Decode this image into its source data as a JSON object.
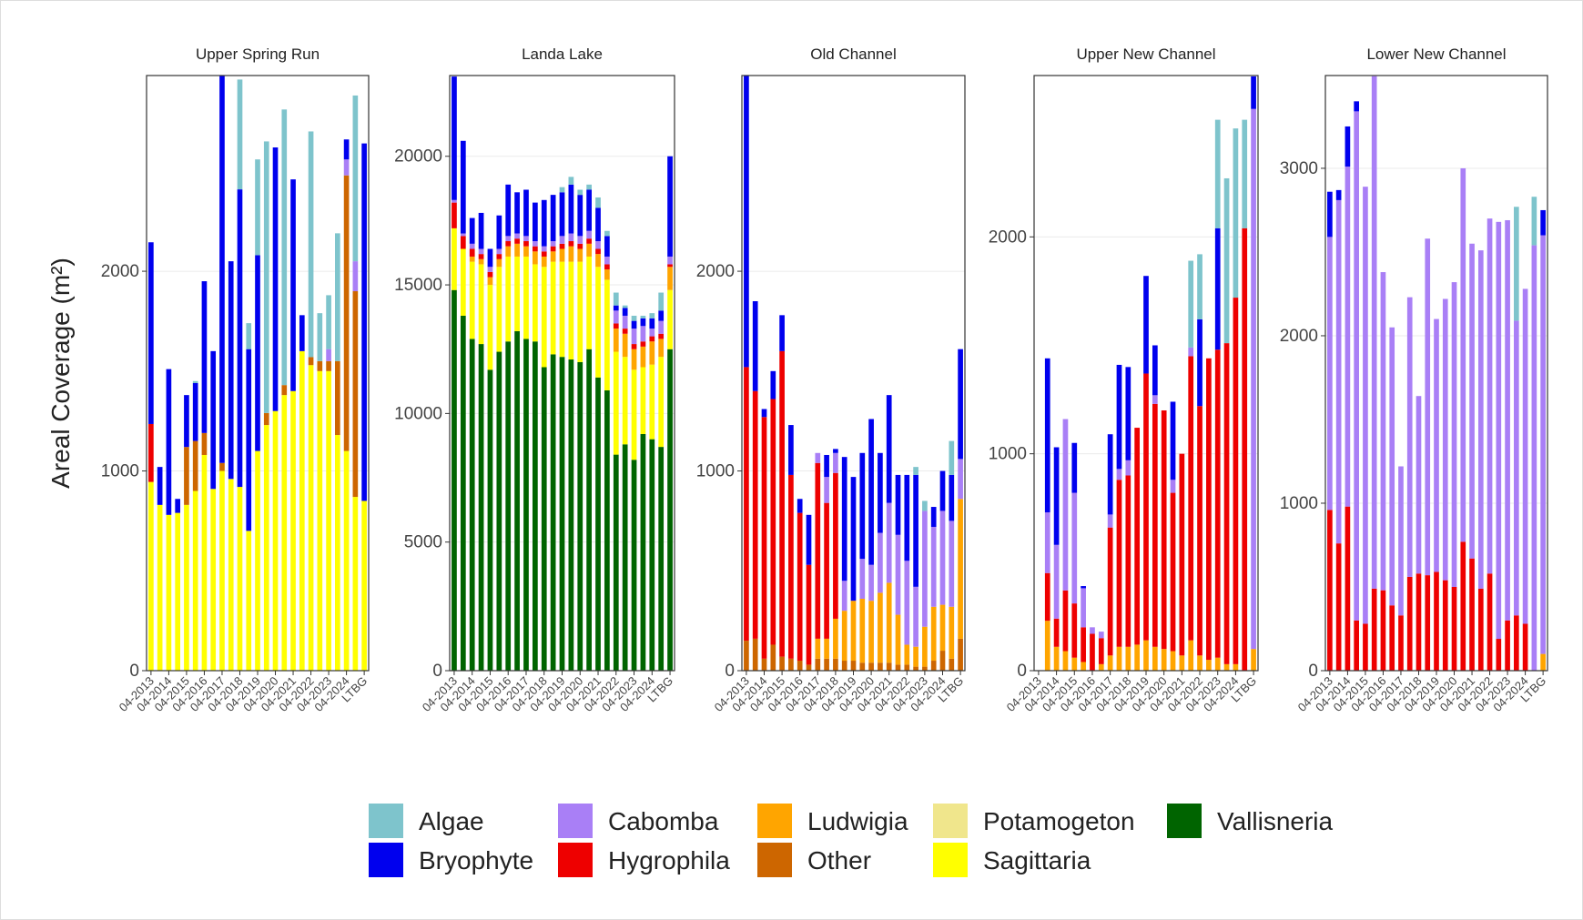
{
  "y_axis_label": "Areal Coverage (m²)",
  "legend": [
    {
      "name": "Algae",
      "color": "#7ec4cc"
    },
    {
      "name": "Bryophyte",
      "color": "#0000ee"
    },
    {
      "name": "Cabomba",
      "color": "#a97ff6"
    },
    {
      "name": "Hygrophila",
      "color": "#ee0000"
    },
    {
      "name": "Ludwigia",
      "color": "#ffa500"
    },
    {
      "name": "Other",
      "color": "#cd6600"
    },
    {
      "name": "Potamogeton",
      "color": "#f0e68c"
    },
    {
      "name": "Sagittaria",
      "color": "#ffff00"
    },
    {
      "name": "Vallisneria",
      "color": "#006400"
    }
  ],
  "chart_data": [
    {
      "type": "stacked_bar",
      "title": "Upper Spring Run",
      "categories": [
        "04-2013",
        null,
        "04-2014",
        null,
        "04-2015",
        null,
        "04-2016",
        null,
        "04-2017",
        null,
        "04-2018",
        null,
        "04-2019",
        null,
        "04-2020",
        null,
        "04-2021",
        null,
        "04-2022",
        null,
        "04-2023",
        null,
        "04-2024",
        null,
        "LTBG"
      ],
      "ylim": [
        0,
        2980
      ],
      "yticks": [
        0,
        1000,
        2000
      ],
      "grid": true,
      "series": [
        {
          "name": "Sagittaria",
          "values": [
            945,
            830,
            780,
            790,
            830,
            900,
            1080,
            910,
            1000,
            960,
            920,
            700,
            1100,
            1230,
            1300,
            1380,
            1400,
            1600,
            1530,
            1500,
            1500,
            1180,
            1100,
            870,
            850
          ]
        },
        {
          "name": "Other",
          "values": [
            0,
            0,
            0,
            0,
            290,
            250,
            110,
            0,
            40,
            0,
            0,
            0,
            0,
            60,
            0,
            50,
            0,
            0,
            40,
            50,
            50,
            370,
            1380,
            1030,
            0
          ]
        },
        {
          "name": "Hygrophila",
          "values": [
            290,
            0,
            0,
            0,
            0,
            0,
            0,
            0,
            0,
            0,
            0,
            0,
            0,
            0,
            0,
            0,
            0,
            0,
            0,
            0,
            0,
            0,
            0,
            0,
            0
          ]
        },
        {
          "name": "Cabomba",
          "values": [
            0,
            0,
            0,
            0,
            0,
            0,
            0,
            0,
            0,
            0,
            0,
            0,
            0,
            0,
            0,
            0,
            0,
            0,
            0,
            0,
            60,
            0,
            80,
            150,
            0
          ]
        },
        {
          "name": "Bryophyte",
          "values": [
            910,
            190,
            730,
            70,
            260,
            290,
            760,
            690,
            1940,
            1090,
            1490,
            910,
            980,
            0,
            1320,
            0,
            1060,
            180,
            0,
            0,
            0,
            0,
            100,
            0,
            1790
          ]
        },
        {
          "name": "Algae",
          "values": [
            0,
            0,
            0,
            0,
            0,
            10,
            0,
            0,
            0,
            0,
            550,
            130,
            480,
            1360,
            0,
            1380,
            0,
            0,
            1130,
            240,
            270,
            640,
            0,
            830,
            0
          ]
        }
      ]
    },
    {
      "type": "stacked_bar",
      "title": "Landa Lake",
      "categories": [
        "04-2013",
        null,
        "04-2014",
        null,
        "04-2015",
        null,
        "04-2016",
        null,
        "04-2017",
        null,
        "04-2018",
        null,
        "04-2019",
        null,
        "04-2020",
        null,
        "04-2021",
        null,
        "04-2022",
        null,
        "04-2023",
        null,
        "04-2024",
        null,
        "LTBG"
      ],
      "ylim": [
        0,
        23140
      ],
      "yticks": [
        0,
        5000,
        10000,
        15000,
        20000
      ],
      "grid": true,
      "series": [
        {
          "name": "Vallisneria",
          "values": [
            14800,
            13800,
            12900,
            12700,
            11700,
            12400,
            12800,
            13200,
            12900,
            12800,
            11800,
            12300,
            12200,
            12100,
            12000,
            12500,
            11400,
            10900,
            8400,
            8800,
            8200,
            9200,
            9000,
            8700,
            12500
          ]
        },
        {
          "name": "Sagittaria",
          "values": [
            2400,
            2600,
            3000,
            3100,
            3300,
            3300,
            3300,
            2900,
            3200,
            3000,
            3900,
            3600,
            3700,
            3800,
            3900,
            3600,
            4300,
            4300,
            4000,
            3400,
            3500,
            2600,
            2900,
            3500,
            2300
          ]
        },
        {
          "name": "Ludwigia",
          "values": [
            0,
            0,
            200,
            200,
            300,
            300,
            400,
            500,
            400,
            500,
            400,
            400,
            500,
            600,
            500,
            500,
            500,
            400,
            900,
            900,
            800,
            800,
            900,
            700,
            900
          ]
        },
        {
          "name": "Hygrophila",
          "values": [
            1000,
            500,
            300,
            200,
            200,
            200,
            200,
            200,
            200,
            200,
            200,
            200,
            200,
            200,
            200,
            200,
            200,
            200,
            200,
            200,
            200,
            200,
            200,
            200,
            100
          ]
        },
        {
          "name": "Cabomba",
          "values": [
            100,
            100,
            200,
            200,
            200,
            200,
            200,
            200,
            200,
            200,
            200,
            200,
            300,
            300,
            300,
            300,
            300,
            300,
            500,
            500,
            600,
            600,
            300,
            500,
            300
          ]
        },
        {
          "name": "Bryophyte",
          "values": [
            4800,
            3600,
            1000,
            1400,
            700,
            1300,
            2000,
            1600,
            1800,
            1500,
            1800,
            1800,
            1700,
            1900,
            1600,
            1600,
            1300,
            800,
            200,
            300,
            300,
            300,
            400,
            400,
            3900
          ]
        },
        {
          "name": "Algae",
          "values": [
            0,
            0,
            0,
            0,
            0,
            0,
            0,
            0,
            0,
            0,
            0,
            0,
            200,
            300,
            200,
            200,
            400,
            200,
            500,
            100,
            200,
            100,
            200,
            700,
            0
          ]
        }
      ]
    },
    {
      "type": "stacked_bar",
      "title": "Old Channel",
      "categories": [
        "04-2013",
        null,
        "04-2014",
        null,
        "04-2015",
        null,
        "04-2016",
        null,
        "04-2017",
        null,
        "04-2018",
        null,
        "04-2019",
        null,
        "04-2020",
        null,
        "04-2021",
        null,
        "04-2022",
        null,
        "04-2023",
        null,
        "04-2024",
        null,
        "LTBG"
      ],
      "ylim": [
        0,
        2980
      ],
      "yticks": [
        0,
        1000,
        2000
      ],
      "grid": true,
      "series": [
        {
          "name": "Other",
          "values": [
            150,
            160,
            60,
            130,
            70,
            60,
            50,
            30,
            60,
            60,
            60,
            50,
            50,
            40,
            40,
            40,
            40,
            30,
            30,
            20,
            20,
            50,
            100,
            60,
            160
          ]
        },
        {
          "name": "Ludwigia",
          "values": [
            0,
            0,
            0,
            0,
            0,
            0,
            0,
            0,
            100,
            100,
            200,
            250,
            300,
            320,
            310,
            350,
            400,
            250,
            100,
            100,
            200,
            270,
            230,
            260,
            700
          ]
        },
        {
          "name": "Hygrophila",
          "values": [
            1370,
            1240,
            1210,
            1230,
            1530,
            920,
            740,
            500,
            880,
            680,
            730,
            0,
            0,
            0,
            0,
            0,
            0,
            0,
            0,
            0,
            0,
            0,
            0,
            0,
            0
          ]
        },
        {
          "name": "Cabomba",
          "values": [
            0,
            0,
            0,
            0,
            0,
            0,
            0,
            0,
            50,
            130,
            100,
            150,
            0,
            200,
            180,
            300,
            400,
            400,
            420,
            300,
            580,
            400,
            470,
            430,
            200
          ]
        },
        {
          "name": "Bryophyte",
          "values": [
            1460,
            450,
            40,
            140,
            180,
            250,
            70,
            250,
            0,
            110,
            20,
            620,
            620,
            530,
            730,
            400,
            540,
            300,
            430,
            560,
            0,
            100,
            200,
            230,
            550
          ]
        },
        {
          "name": "Algae",
          "values": [
            0,
            0,
            0,
            0,
            0,
            0,
            0,
            0,
            0,
            0,
            0,
            0,
            0,
            0,
            0,
            0,
            0,
            0,
            0,
            40,
            50,
            0,
            0,
            170,
            0
          ]
        }
      ]
    },
    {
      "type": "stacked_bar",
      "title": "Upper New Channel",
      "categories": [
        "04-2013",
        null,
        "04-2014",
        null,
        "04-2015",
        null,
        "04-2016",
        null,
        "04-2017",
        null,
        "04-2018",
        null,
        "04-2019",
        null,
        "04-2020",
        null,
        "04-2021",
        null,
        "04-2022",
        null,
        "04-2023",
        null,
        "04-2024",
        null,
        "LTBG"
      ],
      "ylim": [
        0,
        2744
      ],
      "yticks": [
        0,
        1000,
        2000
      ],
      "grid": true,
      "series": [
        {
          "name": "Ludwigia",
          "values": [
            0,
            230,
            110,
            90,
            60,
            40,
            0,
            30,
            70,
            110,
            110,
            120,
            140,
            110,
            100,
            90,
            70,
            140,
            70,
            50,
            60,
            30,
            30,
            0,
            100
          ]
        },
        {
          "name": "Hygrophila",
          "values": [
            0,
            220,
            130,
            280,
            250,
            160,
            170,
            120,
            590,
            770,
            790,
            1000,
            1230,
            1120,
            1100,
            730,
            930,
            1310,
            1150,
            1390,
            1420,
            1480,
            1690,
            2040,
            0
          ]
        },
        {
          "name": "Cabomba",
          "values": [
            0,
            280,
            340,
            790,
            510,
            180,
            30,
            30,
            60,
            50,
            70,
            0,
            0,
            40,
            0,
            60,
            0,
            40,
            0,
            0,
            0,
            0,
            0,
            0,
            2490
          ]
        },
        {
          "name": "Bryophyte",
          "values": [
            0,
            710,
            450,
            0,
            230,
            10,
            0,
            0,
            370,
            480,
            430,
            0,
            450,
            230,
            0,
            360,
            0,
            0,
            400,
            0,
            560,
            0,
            0,
            0,
            150
          ]
        },
        {
          "name": "Algae",
          "values": [
            0,
            0,
            0,
            0,
            0,
            0,
            0,
            0,
            0,
            0,
            0,
            0,
            0,
            0,
            0,
            0,
            0,
            400,
            300,
            0,
            500,
            760,
            780,
            500,
            0
          ]
        }
      ]
    },
    {
      "type": "stacked_bar",
      "title": "Lower New Channel",
      "categories": [
        "04-2013",
        null,
        "04-2014",
        null,
        "04-2015",
        null,
        "04-2016",
        null,
        "04-2017",
        null,
        "04-2018",
        null,
        "04-2019",
        null,
        "04-2020",
        null,
        "04-2021",
        null,
        "04-2022",
        null,
        "04-2023",
        null,
        "04-2024",
        null,
        "LTBG"
      ],
      "ylim": [
        0,
        3554
      ],
      "yticks": [
        0,
        1000,
        2000,
        3000
      ],
      "grid": true,
      "series": [
        {
          "name": "Ludwigia",
          "values": [
            0,
            0,
            0,
            0,
            0,
            0,
            0,
            0,
            0,
            0,
            0,
            0,
            0,
            0,
            0,
            0,
            0,
            0,
            0,
            0,
            0,
            0,
            0,
            0,
            100
          ]
        },
        {
          "name": "Hygrophila",
          "values": [
            960,
            760,
            980,
            300,
            280,
            490,
            480,
            390,
            330,
            560,
            580,
            570,
            590,
            540,
            500,
            770,
            670,
            490,
            580,
            190,
            300,
            330,
            280,
            0,
            0
          ]
        },
        {
          "name": "Cabomba",
          "values": [
            1630,
            2050,
            2030,
            3040,
            2610,
            3060,
            1900,
            1660,
            890,
            1670,
            1060,
            2010,
            1510,
            1680,
            1820,
            2230,
            1880,
            2020,
            2120,
            2490,
            2390,
            1760,
            2000,
            2540,
            2500
          ]
        },
        {
          "name": "Bryophyte",
          "values": [
            270,
            60,
            240,
            60,
            0,
            0,
            0,
            0,
            0,
            0,
            0,
            0,
            0,
            0,
            0,
            0,
            0,
            0,
            0,
            0,
            0,
            0,
            0,
            0,
            150
          ]
        },
        {
          "name": "Algae",
          "values": [
            0,
            0,
            0,
            0,
            0,
            0,
            0,
            0,
            0,
            0,
            0,
            0,
            0,
            0,
            0,
            0,
            0,
            0,
            0,
            0,
            0,
            680,
            0,
            290,
            0
          ]
        }
      ]
    }
  ]
}
